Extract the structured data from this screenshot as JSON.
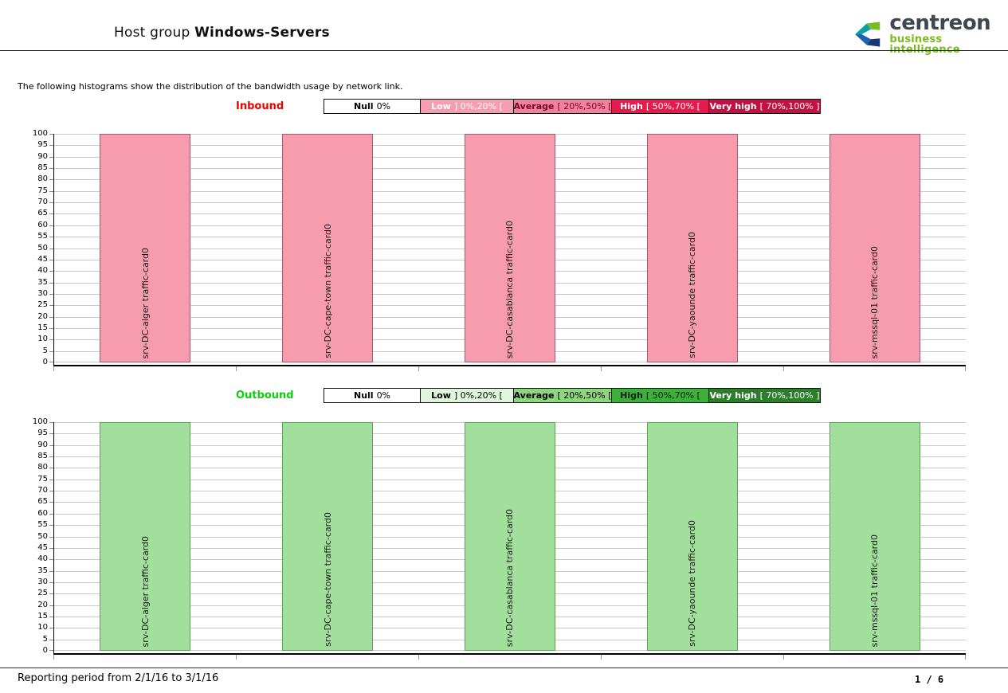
{
  "header": {
    "title_prefix": "Host group",
    "title_emphasis": "Windows-Servers",
    "logo": {
      "brand": "centreon",
      "tagline": "business intelligence",
      "brand_color": "#3d4853",
      "tagline_color": "#7cbb20"
    }
  },
  "intro_text": "The following histograms show the distribution of the bandwidth usage by network link.",
  "chart_data": [
    {
      "type": "bar",
      "title": "Inbound",
      "title_color": "#f30000",
      "categories": [
        "srv-DC-alger traffic-card0",
        "srv-DC-cape-town traffic-card0",
        "srv-DC-casablanca traffic-card0",
        "srv-DC-yaounde traffic-card0",
        "srv-mssql-01 traffic-card0"
      ],
      "values": [
        100,
        100,
        100,
        100,
        100
      ],
      "xlabel": "",
      "ylabel": "",
      "ylim": [
        0,
        100
      ],
      "ytick_step": 5,
      "grid": true,
      "legend_position": "top",
      "bar_color": "#f79cae",
      "bar_border_color": "#a05b6d",
      "legend": [
        {
          "label": "Null",
          "range": "0%",
          "bg": "#ffffff",
          "fg": "#000000"
        },
        {
          "label": "Low",
          "range": "] 0%,20% [",
          "bg": "#f79db2",
          "fg": "#ffffff"
        },
        {
          "label": "Average",
          "range": "[ 20%,50% [",
          "bg": "#f77f9e",
          "fg": "#6b0b25"
        },
        {
          "label": "High",
          "range": "[ 50%,70% [",
          "bg": "#e51a4d",
          "fg": "#ffffff"
        },
        {
          "label": "Very high",
          "range": "[ 70%,100% ]",
          "bg": "#c11243",
          "fg": "#ffffff"
        }
      ]
    },
    {
      "type": "bar",
      "title": "Outbound",
      "title_color": "#0ed00e",
      "categories": [
        "srv-DC-alger traffic-card0",
        "srv-DC-cape-town traffic-card0",
        "srv-DC-casablanca traffic-card0",
        "srv-DC-yaounde traffic-card0",
        "srv-mssql-01 traffic-card0"
      ],
      "values": [
        100,
        100,
        100,
        100,
        100
      ],
      "xlabel": "",
      "ylabel": "",
      "ylim": [
        0,
        100
      ],
      "ytick_step": 5,
      "grid": true,
      "legend_position": "top",
      "bar_color": "#a2df9c",
      "bar_border_color": "#5f9f5a",
      "legend": [
        {
          "label": "Null",
          "range": "0%",
          "bg": "#ffffff",
          "fg": "#000000"
        },
        {
          "label": "Low",
          "range": "] 0%,20% [",
          "bg": "#dff6dc",
          "fg": "#000000"
        },
        {
          "label": "Average",
          "range": "[ 20%,50% [",
          "bg": "#8fd57e",
          "fg": "#000000"
        },
        {
          "label": "High",
          "range": "[ 50%,70% [",
          "bg": "#3fae3c",
          "fg": "#0b2409"
        },
        {
          "label": "Very high",
          "range": "[ 70%,100% ]",
          "bg": "#2e7d2e",
          "fg": "#ffffff"
        }
      ]
    }
  ],
  "footer": {
    "reporting_period": "Reporting period from 2/1/16 to 3/1/16",
    "page_indicator": "1 / 6"
  }
}
